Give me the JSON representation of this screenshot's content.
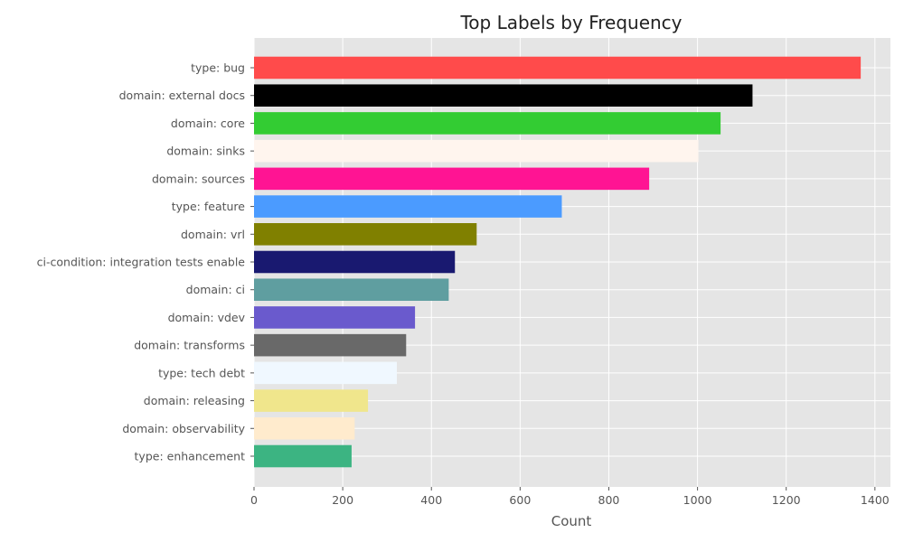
{
  "chart_data": {
    "type": "bar",
    "orientation": "horizontal",
    "title": "Top Labels by Frequency",
    "xlabel": "Count",
    "ylabel": "",
    "xlim": [
      0,
      1435
    ],
    "xticks": [
      0,
      200,
      400,
      600,
      800,
      1000,
      1200,
      1400
    ],
    "grid": true,
    "background": "#e5e5e5",
    "bars": [
      {
        "label": "type: bug",
        "value": 1368,
        "color": "#ff4b4b"
      },
      {
        "label": "domain: external docs",
        "value": 1124,
        "color": "#000000"
      },
      {
        "label": "domain: core",
        "value": 1052,
        "color": "#33cc33"
      },
      {
        "label": "domain: sinks",
        "value": 1002,
        "color": "#fff5ee"
      },
      {
        "label": "domain: sources",
        "value": 891,
        "color": "#ff1493"
      },
      {
        "label": "type: feature",
        "value": 694,
        "color": "#4b9bff"
      },
      {
        "label": "domain: vrl",
        "value": 502,
        "color": "#808000"
      },
      {
        "label": "ci-condition: integration tests enable",
        "value": 453,
        "color": "#191970"
      },
      {
        "label": "domain: ci",
        "value": 439,
        "color": "#5f9ea0"
      },
      {
        "label": "domain: vdev",
        "value": 363,
        "color": "#6a5acd"
      },
      {
        "label": "domain: transforms",
        "value": 343,
        "color": "#696969"
      },
      {
        "label": "type: tech debt",
        "value": 322,
        "color": "#f0f8ff"
      },
      {
        "label": "domain: releasing",
        "value": 257,
        "color": "#f0e68c"
      },
      {
        "label": "domain: observability",
        "value": 227,
        "color": "#ffebcd"
      },
      {
        "label": "type: enhancement",
        "value": 220,
        "color": "#3cb482"
      }
    ]
  }
}
